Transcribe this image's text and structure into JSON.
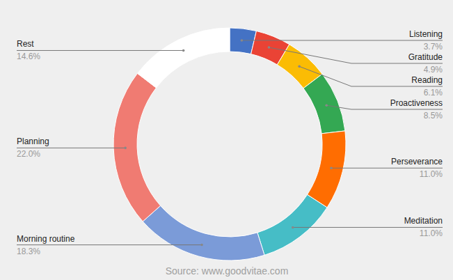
{
  "chart_data": {
    "type": "pie",
    "categories": [
      "Listening",
      "Gratitude",
      "Reading",
      "Proactiveness",
      "Perseverance",
      "Meditation",
      "Morning routine",
      "Planning",
      "Rest"
    ],
    "values": [
      3.7,
      4.9,
      6.1,
      8.5,
      11.0,
      11.0,
      18.3,
      22.0,
      14.6
    ],
    "value_labels": [
      "3.7%",
      "4.9%",
      "6.1%",
      "8.5%",
      "11.0%",
      "11.0%",
      "18.3%",
      "22.0%",
      "14.6%"
    ],
    "colors": [
      "#4472c4",
      "#ea4335",
      "#fbbc04",
      "#34a853",
      "#ff6d01",
      "#46bdc6",
      "#7b9bd8",
      "#f07b72",
      "#ffffff"
    ],
    "data_labels": true,
    "annotations": [
      "Source: www.goodvitae.com"
    ]
  }
}
